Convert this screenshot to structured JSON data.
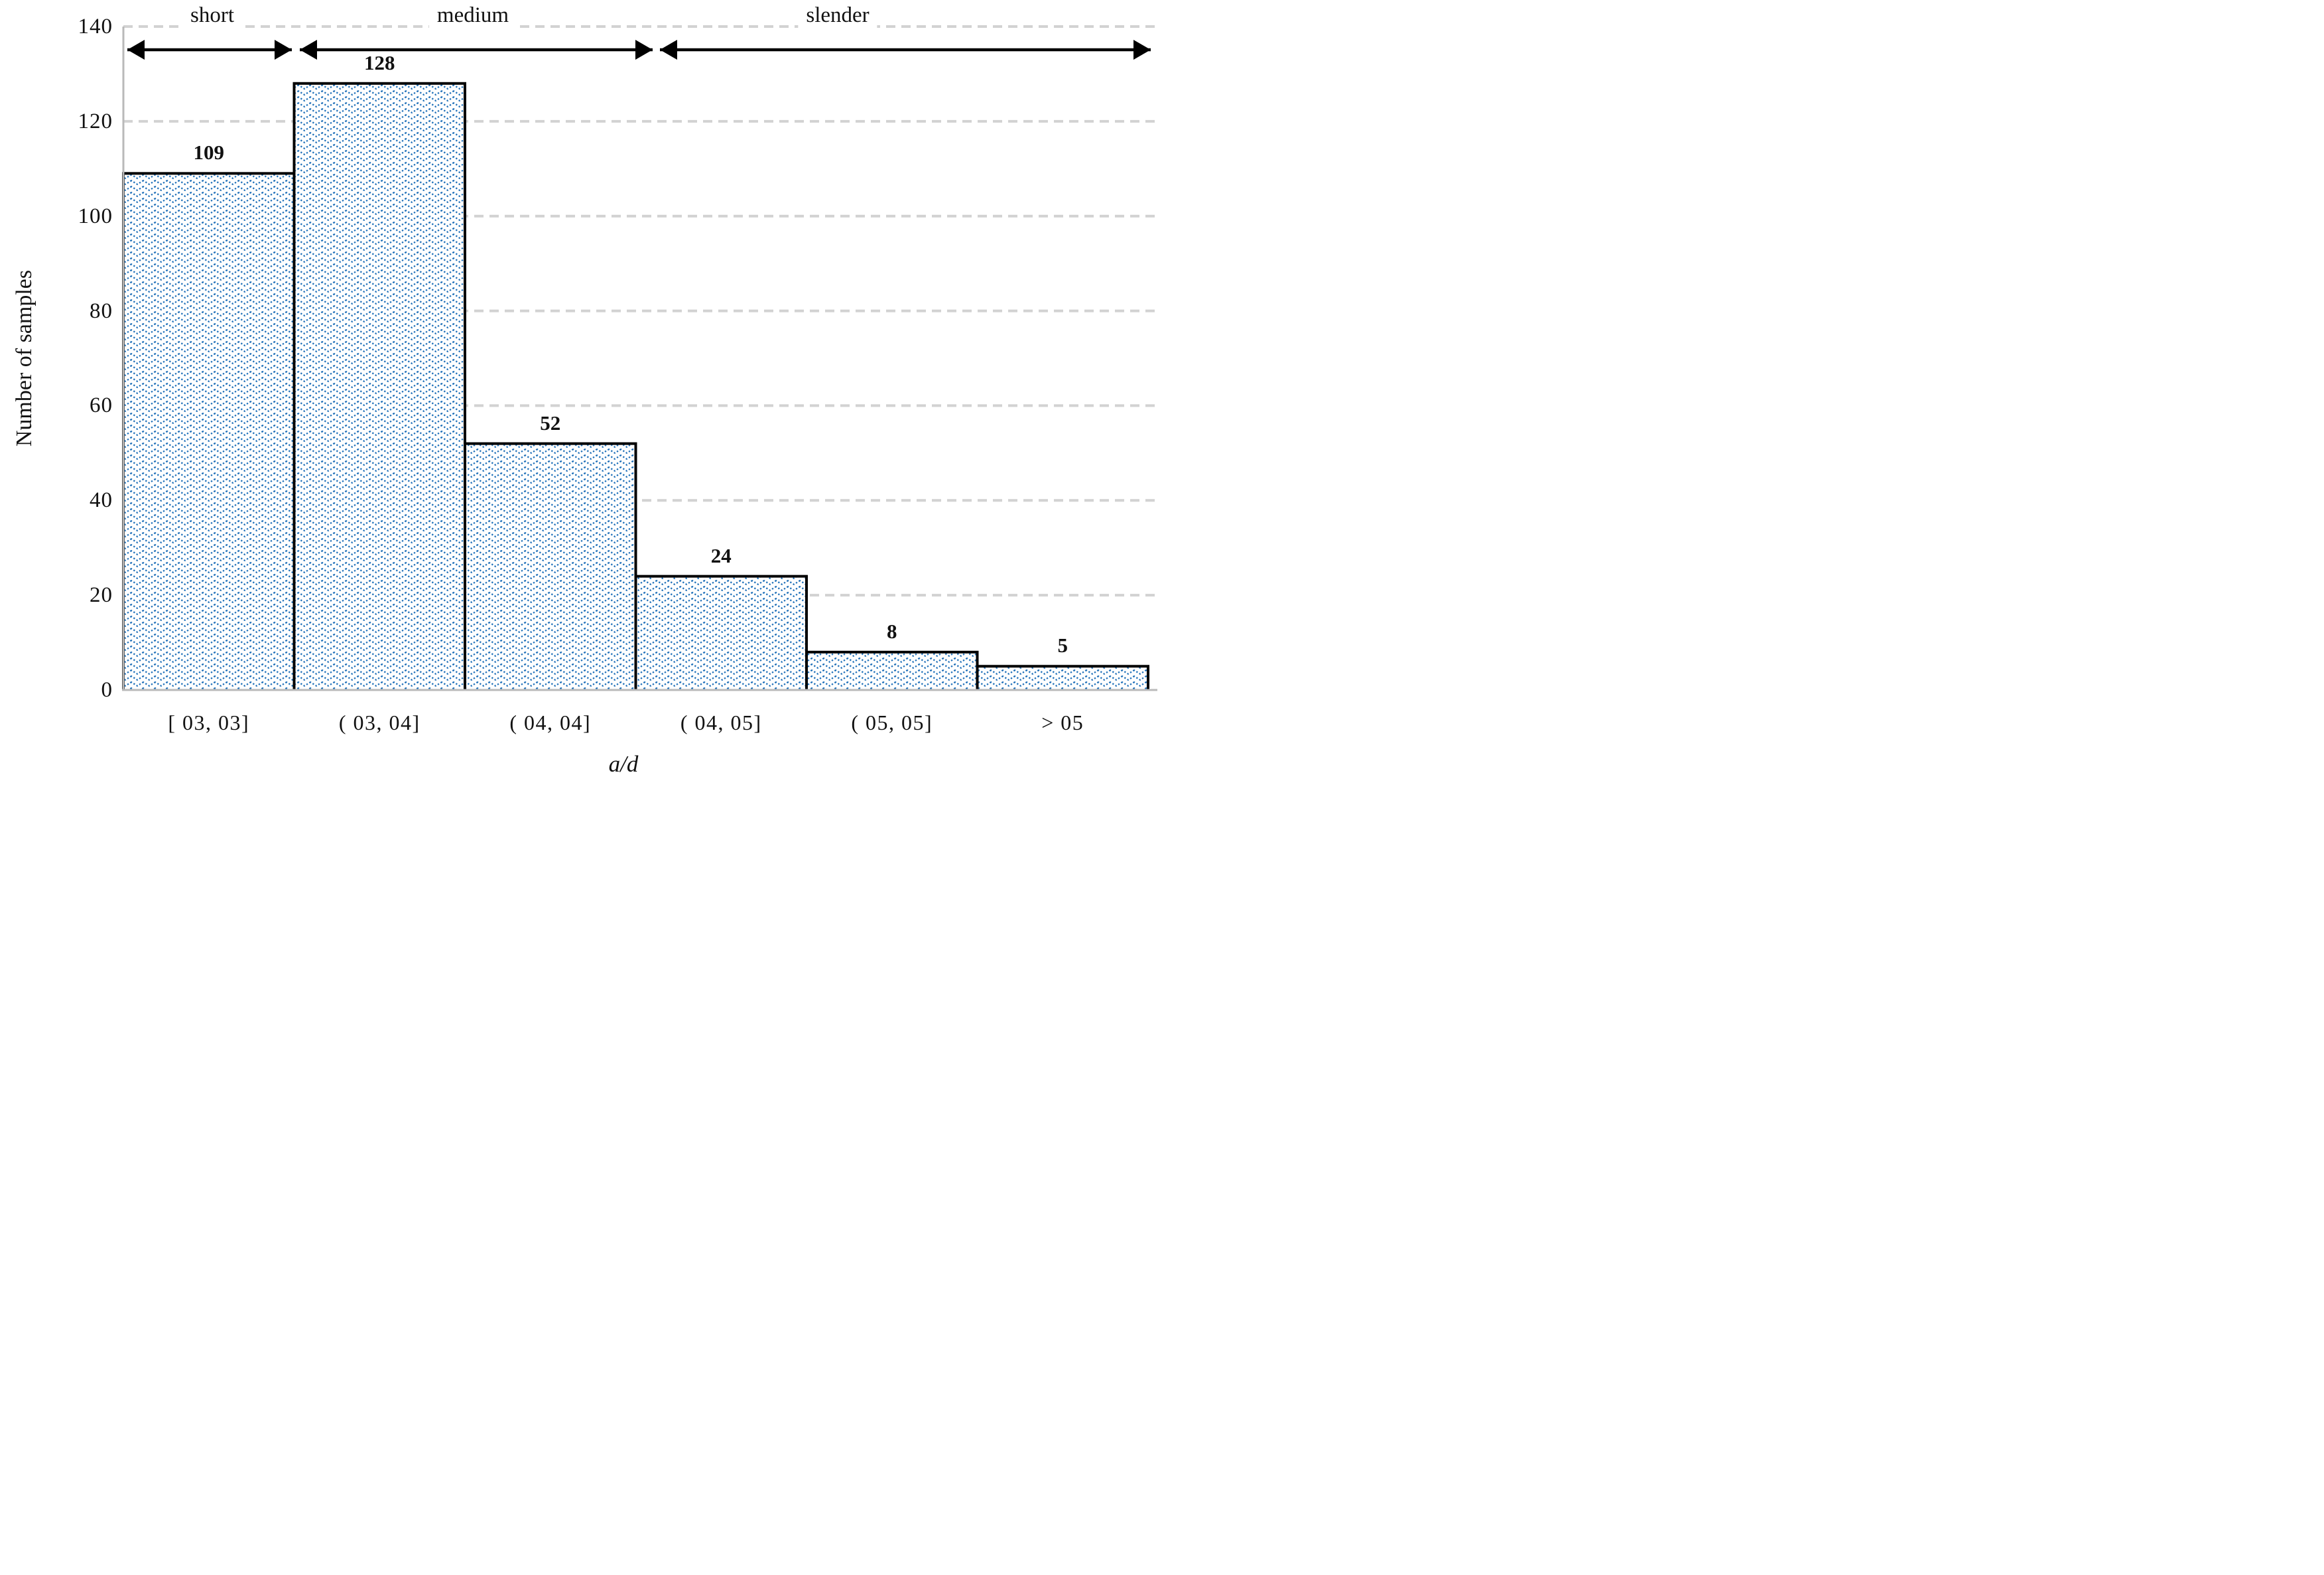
{
  "chart_data": {
    "type": "bar",
    "title": "",
    "categories": [
      "[ 03,  03]",
      "( 03,  04]",
      "( 04,  04]",
      "( 04,  05]",
      "( 05,  05]",
      ">  05"
    ],
    "values": [
      109,
      128,
      52,
      24,
      8,
      5
    ],
    "xlabel": "a/d",
    "ylabel": "Number of samples",
    "y_ticks": [
      0,
      20,
      40,
      60,
      80,
      100,
      120,
      140
    ],
    "ylim": [
      0,
      140
    ],
    "grid": "horizontal-dashed",
    "legend": "none",
    "zones": [
      "short",
      "medium",
      "slender"
    ],
    "zone_bar_ranges": [
      [
        1,
        1
      ],
      [
        2,
        3
      ],
      [
        4,
        6
      ]
    ],
    "colors": {
      "bar_pattern_blue": "#1e6fb8",
      "bar_border": "#000000",
      "gridline": "#d2d2d2",
      "axis_line": "#b9b9b9",
      "text": "#111111",
      "annotation_arrow": "#000000"
    }
  }
}
